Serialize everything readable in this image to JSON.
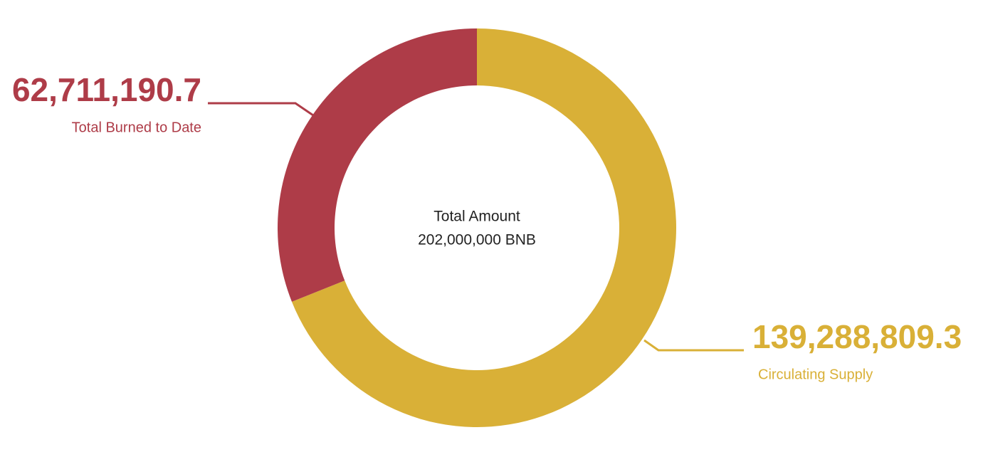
{
  "chart_data": {
    "type": "donut",
    "center_title": "Total Amount",
    "center_label": "202,000,000 BNB",
    "categories": [
      "Circulating Supply",
      "Total Burned to Date"
    ],
    "values": [
      139288809.3,
      62711190.7
    ],
    "value_labels": [
      "139,288,809.3",
      "62,711,190.7"
    ],
    "colors": [
      "#d9b037",
      "#ae3c48"
    ]
  }
}
